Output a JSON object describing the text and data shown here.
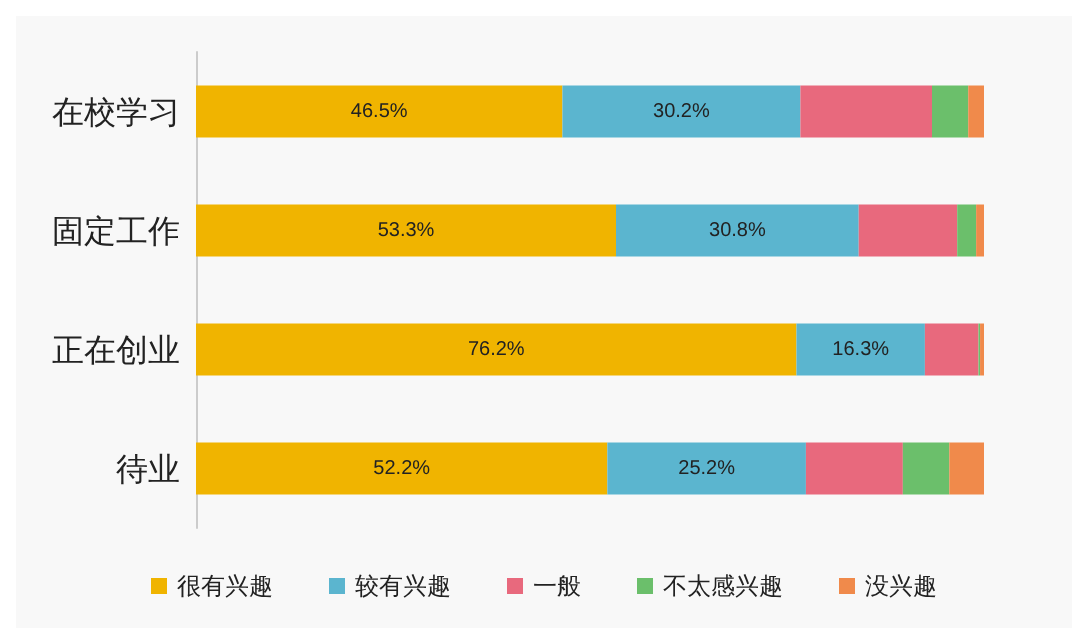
{
  "chart_data": {
    "type": "bar",
    "orientation": "horizontal",
    "stacked": true,
    "categories": [
      "在校学习",
      "固定工作",
      "正在创业",
      "待业"
    ],
    "xlim": [
      0,
      100
    ],
    "tick_labels": "y",
    "legend": "bottom",
    "series": [
      {
        "name": "很有兴趣",
        "color": "#f0b400",
        "values": [
          46.5,
          53.3,
          76.2,
          52.2
        ],
        "value_labels": [
          "46.5%",
          "53.3%",
          "76.2%",
          "52.2%"
        ]
      },
      {
        "name": "较有兴趣",
        "color": "#5bb5cf",
        "values": [
          30.2,
          30.8,
          16.3,
          25.2
        ],
        "value_labels": [
          "30.2%",
          "30.8%",
          "16.3%",
          "25.2%"
        ]
      },
      {
        "name": "一般",
        "color": "#e8697d",
        "values": [
          16.7,
          12.5,
          6.8,
          12.3
        ]
      },
      {
        "name": "不太感兴趣",
        "color": "#6bbf6b",
        "values": [
          4.6,
          2.4,
          0.2,
          5.9
        ]
      },
      {
        "name": "没兴趣",
        "color": "#f08a4b",
        "values": [
          2.0,
          1.0,
          0.5,
          4.4
        ]
      }
    ]
  }
}
